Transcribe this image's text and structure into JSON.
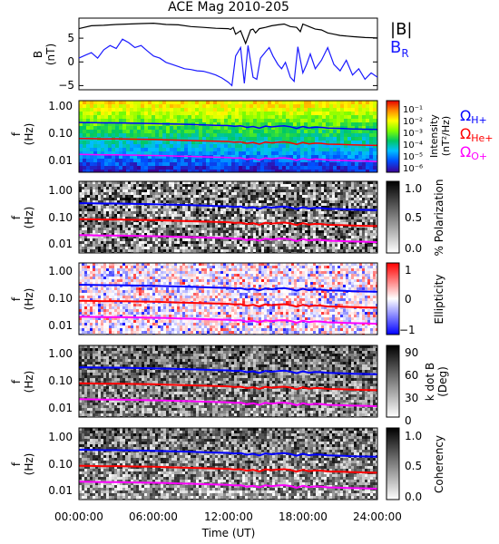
{
  "chart_data": [
    {
      "type": "line",
      "title": "ACE Mag 2010-205",
      "ylabel": "B (nT)",
      "ylim": [
        -7,
        10
      ],
      "yticks": [
        -5,
        0,
        5
      ],
      "xlim": [
        "00:00:00",
        "24:00:00"
      ],
      "series": [
        {
          "name": "|B|",
          "color": "#000000",
          "x": [
            0,
            1,
            2,
            3,
            4,
            5,
            6,
            7,
            8,
            9,
            10,
            11,
            12,
            12.2,
            12.4,
            12.6,
            13,
            13.4,
            13.8,
            14,
            14.2,
            14.5,
            15,
            15.5,
            16,
            16.5,
            17,
            17.5,
            17.8,
            18,
            18.5,
            19,
            19.5,
            20,
            20.5,
            21,
            22,
            23,
            24
          ],
          "y": [
            7.5,
            8.2,
            8.3,
            8.5,
            8.6,
            8.7,
            8.8,
            8.5,
            8.4,
            8.0,
            7.8,
            7.6,
            7.5,
            7.3,
            7.8,
            6.2,
            7.0,
            4.0,
            7.2,
            7.4,
            6.5,
            7.5,
            7.8,
            8.2,
            8.4,
            8.6,
            8.0,
            7.8,
            6.8,
            8.6,
            8.0,
            7.4,
            7.2,
            6.5,
            6.2,
            5.9,
            5.6,
            5.4,
            5.3
          ]
        },
        {
          "name": "B_R",
          "color": "#1a1aff",
          "x": [
            0,
            0.5,
            1,
            1.5,
            2,
            2.5,
            3,
            3.5,
            4,
            4.5,
            5,
            5.5,
            6,
            6.5,
            7,
            7.5,
            8,
            8.5,
            9,
            9.5,
            10,
            10.5,
            11,
            11.5,
            12,
            12.3,
            12.6,
            13,
            13.3,
            13.6,
            14,
            14.3,
            14.6,
            15,
            15.3,
            15.6,
            16,
            16.3,
            16.6,
            17,
            17.3,
            17.6,
            18,
            18.3,
            18.6,
            19,
            19.5,
            20,
            20.5,
            21,
            21.5,
            22,
            22.5,
            23,
            23.5,
            24
          ],
          "y": [
            0.5,
            1.2,
            1.8,
            0.5,
            2.5,
            3.5,
            2.8,
            5.0,
            4.2,
            3.0,
            3.5,
            2.2,
            1.0,
            0.5,
            -0.5,
            -1.0,
            -1.5,
            -2.0,
            -2.2,
            -2.5,
            -2.6,
            -3.0,
            -3.5,
            -4.2,
            -5.2,
            -6.0,
            1.0,
            3.0,
            -5.5,
            3.5,
            -4.0,
            -4.5,
            0.5,
            2.0,
            3.0,
            1.0,
            -1.0,
            -2.0,
            -0.5,
            -4.0,
            -5.0,
            3.2,
            -3.0,
            -1.0,
            1.5,
            -2.0,
            0.0,
            3.0,
            -1.0,
            -2.5,
            0.0,
            -3.5,
            -2.0,
            -4.5,
            -3.0,
            -4.0
          ]
        }
      ],
      "legend": [
        "|B|",
        "B_R"
      ]
    },
    {
      "type": "heatmap",
      "ylabel": "f (Hz)",
      "ylim": [
        0.002,
        1.0
      ],
      "yscale": "log",
      "yticks": [
        "1.00",
        "0.10",
        "0.01"
      ],
      "colorbar": {
        "label": "Intensity (nT²/Hz)",
        "ticks": [
          "10⁻¹",
          "10⁻²",
          "10⁻³",
          "10⁻⁴",
          "10⁻⁵",
          "10⁻⁶"
        ]
      },
      "overlays": [
        "Ω_H+",
        "Ω_He+",
        "Ω_O+"
      ]
    },
    {
      "type": "heatmap",
      "ylabel": "f (Hz)",
      "ylim": [
        0.002,
        1.0
      ],
      "yscale": "log",
      "yticks": [
        "1.00",
        "0.10",
        "0.01"
      ],
      "colorbar": {
        "label": "% Polarization",
        "ticks": [
          "1.0",
          "0.5",
          "0.0"
        ]
      }
    },
    {
      "type": "heatmap",
      "ylabel": "f (Hz)",
      "ylim": [
        0.002,
        1.0
      ],
      "yscale": "log",
      "yticks": [
        "1.00",
        "0.10",
        "0.01"
      ],
      "colorbar": {
        "label": "Ellipticity",
        "ticks": [
          "1",
          "0",
          "−1"
        ]
      }
    },
    {
      "type": "heatmap",
      "ylabel": "f (Hz)",
      "ylim": [
        0.002,
        1.0
      ],
      "yscale": "log",
      "yticks": [
        "1.00",
        "0.10",
        "0.01"
      ],
      "colorbar": {
        "label": "k dot B (Deg)",
        "ticks": [
          "90",
          "60",
          "30",
          "0"
        ]
      }
    },
    {
      "type": "heatmap",
      "ylabel": "f (Hz)",
      "ylim": [
        0.002,
        1.0
      ],
      "yscale": "log",
      "yticks": [
        "1.00",
        "0.10",
        "0.01"
      ],
      "colorbar": {
        "label": "Coherency",
        "ticks": [
          "1.0",
          "0.5",
          "0.0"
        ]
      },
      "xlabel": "Time (UT)",
      "xticks": [
        "00:00:00",
        "06:00:00",
        "12:00:00",
        "18:00:00",
        "24:00:00"
      ]
    }
  ],
  "gyrofrequencies": {
    "x": [
      0,
      1,
      2,
      3,
      4,
      5,
      6,
      7,
      8,
      9,
      10,
      11,
      12,
      12.5,
      13,
      13.5,
      14,
      14.5,
      15,
      15.5,
      16,
      16.5,
      17,
      17.5,
      18,
      18.5,
      19,
      19.5,
      20,
      21,
      22,
      23,
      24
    ],
    "H": [
      0.15,
      0.148,
      0.145,
      0.146,
      0.142,
      0.14,
      0.138,
      0.134,
      0.13,
      0.126,
      0.122,
      0.118,
      0.115,
      0.108,
      0.112,
      0.098,
      0.106,
      0.092,
      0.11,
      0.102,
      0.108,
      0.112,
      0.104,
      0.09,
      0.106,
      0.094,
      0.1,
      0.098,
      0.092,
      0.09,
      0.086,
      0.084,
      0.082
    ],
    "He": [
      0.0375,
      0.037,
      0.0362,
      0.0365,
      0.0355,
      0.035,
      0.0345,
      0.0335,
      0.0325,
      0.0315,
      0.0305,
      0.0295,
      0.0288,
      0.027,
      0.028,
      0.0245,
      0.0265,
      0.023,
      0.0275,
      0.0255,
      0.027,
      0.028,
      0.026,
      0.0225,
      0.0265,
      0.0235,
      0.025,
      0.0245,
      0.023,
      0.0225,
      0.0215,
      0.021,
      0.0205
    ],
    "O": [
      0.0094,
      0.0093,
      0.0091,
      0.0091,
      0.0089,
      0.0088,
      0.0086,
      0.0084,
      0.0081,
      0.0079,
      0.0076,
      0.0074,
      0.0072,
      0.0068,
      0.007,
      0.0061,
      0.0066,
      0.0058,
      0.0069,
      0.0064,
      0.0068,
      0.007,
      0.0065,
      0.0056,
      0.0066,
      0.0059,
      0.0063,
      0.0061,
      0.0058,
      0.0056,
      0.0054,
      0.0053,
      0.0051
    ],
    "colors": {
      "H": "#0000ff",
      "He": "#ff0000",
      "O": "#ff00ff"
    }
  },
  "labels": {
    "title": "ACE Mag 2010-205",
    "b_panel_ylabel": "B",
    "b_panel_unit": "(nT)",
    "legend_absB": "|B|",
    "legend_BR": "B",
    "legend_BR_sub": "R",
    "freq_label": "f",
    "freq_unit": "(Hz)",
    "omega": "Ω",
    "omega_H_sub": "H+",
    "omega_He_sub": "He+",
    "omega_O_sub": "O+",
    "intensity_label": "Intensity",
    "intensity_unit": "(nT²/Hz)",
    "polarization_label": "% Polarization",
    "ellipticity_label": "Ellipticity",
    "kdotb_label": "k dot B",
    "kdotb_unit": "(Deg)",
    "coherency_label": "Coherency",
    "xlabel": "Time (UT)"
  },
  "colors": {
    "absB": "#000000",
    "BR": "#1a1aff",
    "omega_H": "#0000ff",
    "omega_He": "#ff0000",
    "omega_O": "#ff00ff"
  }
}
